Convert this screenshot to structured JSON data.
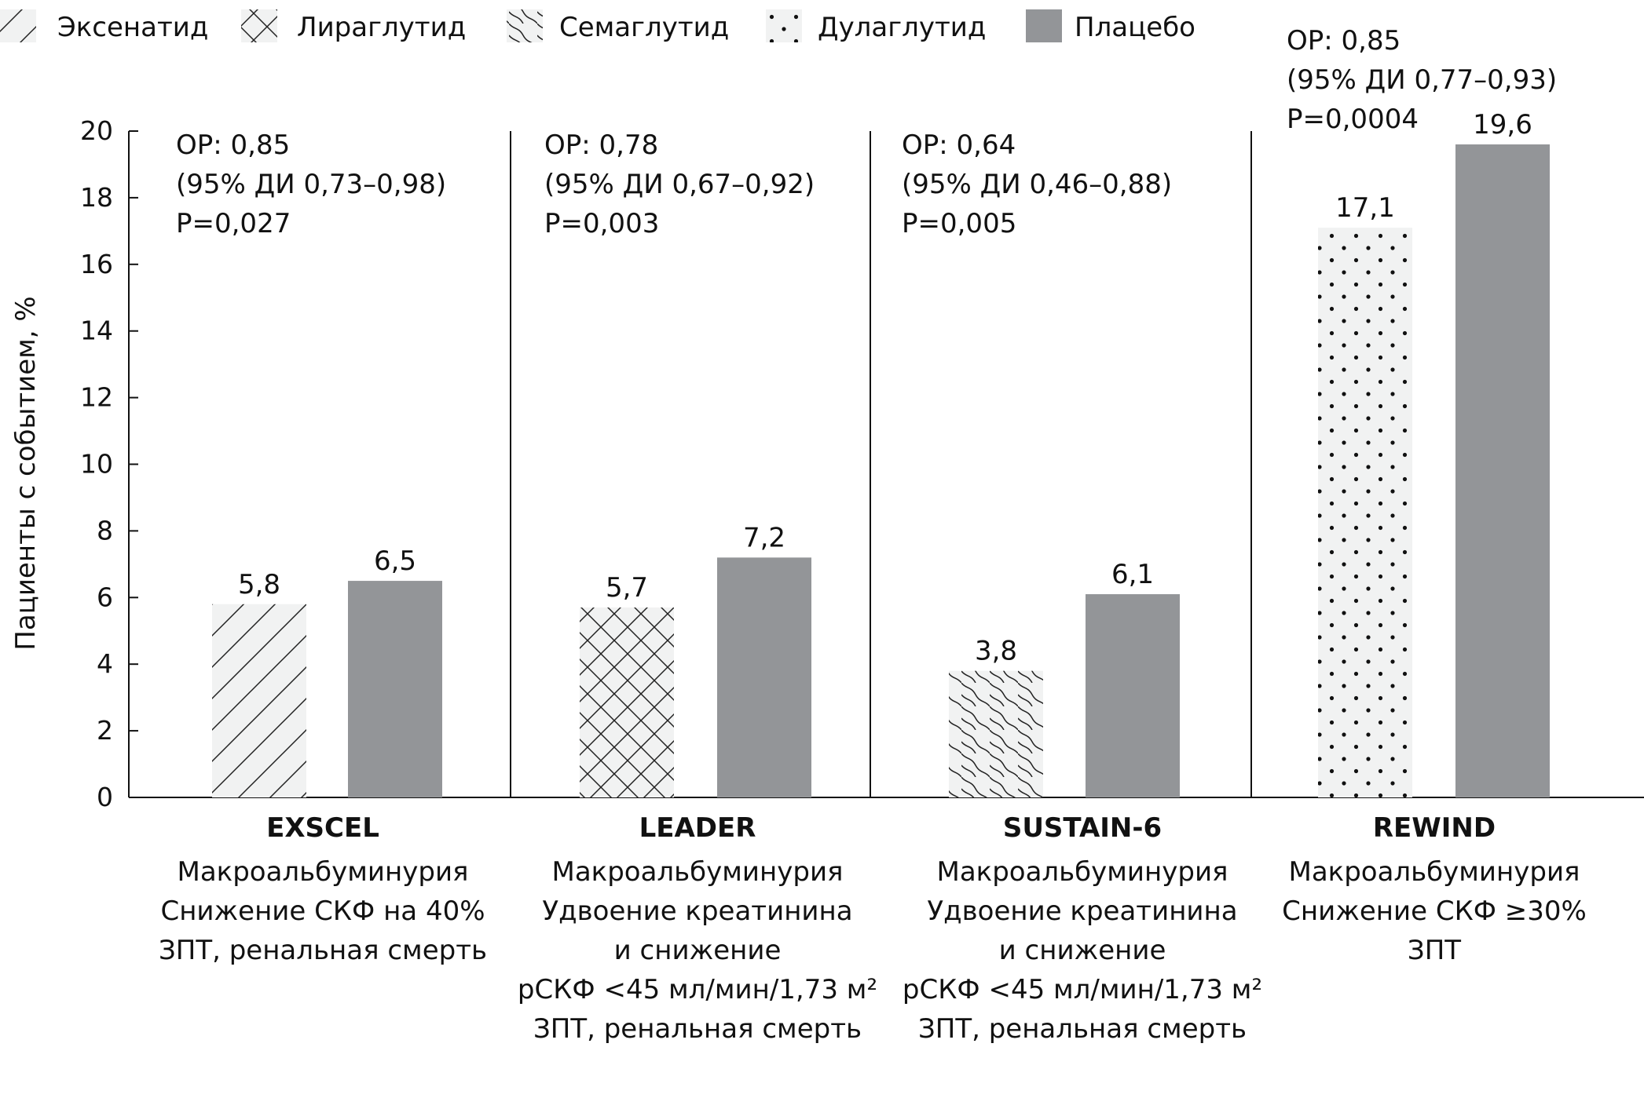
{
  "chart_data": {
    "type": "bar",
    "ylabel": "Пациенты с событием, %",
    "ylim": [
      0,
      20
    ],
    "yticks": [
      "0",
      "2",
      "4",
      "6",
      "8",
      "10",
      "12",
      "14",
      "16",
      "18",
      "20"
    ],
    "grid": false,
    "legend_position": "top-left",
    "legend": [
      {
        "name": "Эксенатид",
        "pattern": "hatch"
      },
      {
        "name": "Лираглутид",
        "pattern": "crosshatch"
      },
      {
        "name": "Семаглутид",
        "pattern": "wave"
      },
      {
        "name": "Дулаглутид",
        "pattern": "dots"
      },
      {
        "name": "Плацебо",
        "pattern": "solid"
      }
    ],
    "colors": {
      "placebo": "#939598",
      "drug_bg": "#f1f2f2",
      "ink": "#111111"
    },
    "groups": [
      {
        "trial": "EXSCEL",
        "drug": "Эксенатид",
        "drug_value": 5.8,
        "drug_label": "5,8",
        "placebo_value": 6.5,
        "placebo_label": "6,5",
        "stats": [
          "ОР: 0,85",
          "(95% ДИ 0,73–0,98)",
          "P=0,027"
        ],
        "outcomes": [
          "Макроальбуминурия",
          "Снижение СКФ на 40%",
          "ЗПТ, ренальная смерть"
        ]
      },
      {
        "trial": "LEADER",
        "drug": "Лираглутид",
        "drug_value": 5.7,
        "drug_label": "5,7",
        "placebo_value": 7.2,
        "placebo_label": "7,2",
        "stats": [
          "ОР: 0,78",
          "(95% ДИ 0,67–0,92)",
          "P=0,003"
        ],
        "outcomes": [
          "Макроальбуминурия",
          "Удвоение креатинина",
          "и снижение",
          "рСКФ <45 мл/мин/1,73 м²",
          "ЗПТ, ренальная смерть"
        ]
      },
      {
        "trial": "SUSTAIN-6",
        "drug": "Семаглутид",
        "drug_value": 3.8,
        "drug_label": "3,8",
        "placebo_value": 6.1,
        "placebo_label": "6,1",
        "stats": [
          "ОР: 0,64",
          "(95% ДИ 0,46–0,88)",
          "P=0,005"
        ],
        "outcomes": [
          "Макроальбуминурия",
          "Удвоение креатинина",
          "и снижение",
          "рСКФ <45 мл/мин/1,73 м²",
          "ЗПТ, ренальная смерть"
        ]
      },
      {
        "trial": "REWIND",
        "drug": "Дулаглутид",
        "drug_value": 17.1,
        "drug_label": "17,1",
        "placebo_value": 19.6,
        "placebo_label": "19,6",
        "stats": [
          "ОР: 0,85",
          "(95% ДИ 0,77–0,93)",
          "P=0,0004"
        ],
        "outcomes": [
          "Макроальбуминурия",
          "Снижение СКФ ≥30%",
          "ЗПТ"
        ]
      }
    ]
  }
}
